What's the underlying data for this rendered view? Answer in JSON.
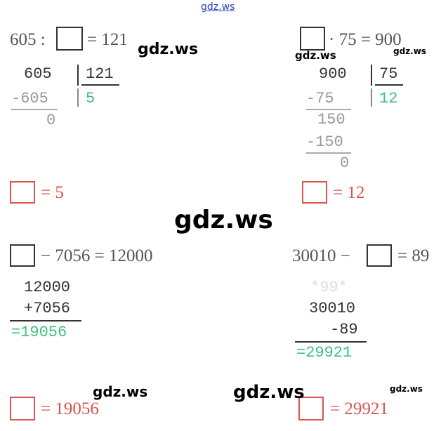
{
  "header": {
    "link": "gdz.ws"
  },
  "problems": [
    {
      "equation": {
        "left": "605 :",
        "right": "= 121"
      },
      "work": {
        "dividend": "605",
        "divisor": "121",
        "subtract": "-605",
        "quotient": "5",
        "remainder": "0"
      },
      "answer": "= 5"
    },
    {
      "equation": {
        "right": "· 75 = 900"
      },
      "work": {
        "dividend": "900",
        "divisor": "75",
        "subtract1": "-75",
        "quotient": "12",
        "partial": "150",
        "subtract2": "-150",
        "remainder": "0"
      },
      "answer": "= 12"
    },
    {
      "equation": {
        "right": "− 7056 = 12000"
      },
      "work": {
        "line1": "12000",
        "line2": "+7056",
        "result": "=19056"
      },
      "answer": "= 19056"
    },
    {
      "equation": {
        "left": "30010 −",
        "right": "= 89"
      },
      "work": {
        "marks": "*99*",
        "line1": "30010",
        "line2": "-89",
        "result": "=29921"
      },
      "answer": "= 29921"
    }
  ],
  "watermarks": [
    "gdz.ws",
    "gdz.ws",
    "gdz.ws",
    "gdz.ws",
    "gdz.ws",
    "gdz.ws",
    "gdz.ws"
  ]
}
